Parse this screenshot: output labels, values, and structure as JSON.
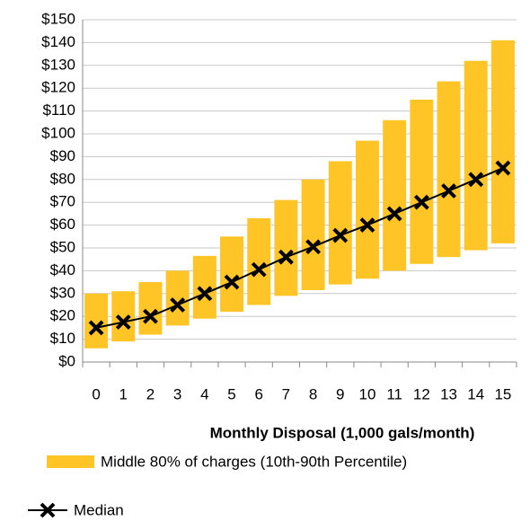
{
  "chart_data": {
    "type": "range-bar-line",
    "x_label": "Monthly Disposal (1,000 gals/month)",
    "categories": [
      "0",
      "1",
      "2",
      "3",
      "4",
      "5",
      "6",
      "7",
      "8",
      "9",
      "10",
      "11",
      "12",
      "13",
      "14",
      "15"
    ],
    "series": [
      {
        "name": "Middle 80% of charges (10th-90th Percentile)",
        "color": "#ffc425",
        "kind": "range",
        "low": [
          6,
          9,
          12,
          16,
          19,
          22,
          25,
          29,
          31.5,
          34,
          36.5,
          40,
          43,
          46,
          49,
          52
        ],
        "high": [
          30,
          31,
          35,
          40,
          46.5,
          55,
          63,
          71,
          80,
          88,
          97,
          106,
          115,
          123,
          132,
          141
        ]
      },
      {
        "name": "Median",
        "color": "#000000",
        "kind": "line",
        "values": [
          15,
          17.5,
          20,
          25,
          30,
          35,
          40.5,
          46,
          50.5,
          55.5,
          60,
          65,
          70,
          75,
          80,
          85
        ]
      }
    ],
    "ylim": [
      0,
      150
    ],
    "yticks": [
      {
        "value": 0,
        "label": "$0"
      },
      {
        "value": 10,
        "label": "$10"
      },
      {
        "value": 20,
        "label": "$20"
      },
      {
        "value": 30,
        "label": "$30"
      },
      {
        "value": 40,
        "label": "$40"
      },
      {
        "value": 50,
        "label": "$50"
      },
      {
        "value": 60,
        "label": "$60"
      },
      {
        "value": 70,
        "label": "$70"
      },
      {
        "value": 80,
        "label": "$80"
      },
      {
        "value": 90,
        "label": "$90"
      },
      {
        "value": 100,
        "label": "$100"
      },
      {
        "value": 110,
        "label": "$110"
      },
      {
        "value": 120,
        "label": "$120"
      },
      {
        "value": 130,
        "label": "$130"
      },
      {
        "value": 140,
        "label": "$140"
      },
      {
        "value": 150,
        "label": "$150"
      }
    ],
    "grid": true
  }
}
